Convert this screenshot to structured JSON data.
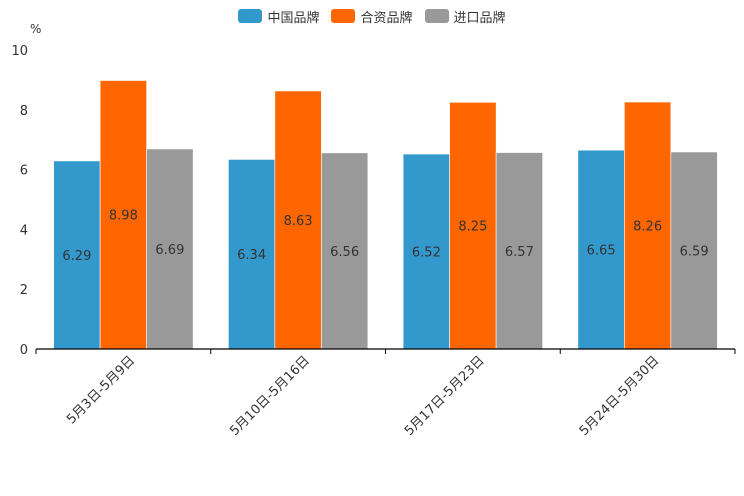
{
  "chart_data": {
    "type": "bar",
    "title": "",
    "ylabel": "%",
    "xlabel": "",
    "ylim": [
      0,
      10
    ],
    "yticks": [
      "0",
      "2",
      "4",
      "6",
      "8",
      "10"
    ],
    "categories": [
      "5月3日-5月9日",
      "5月10日-5月16日",
      "5月17日-5月23日",
      "5月24日-5月30日"
    ],
    "legend_position": "top-center",
    "series": [
      {
        "name": "中国品牌",
        "color": "#3399cc",
        "values": [
          6.29,
          6.34,
          6.52,
          6.65
        ]
      },
      {
        "name": "合资品牌",
        "color": "#ff6600",
        "values": [
          8.98,
          8.63,
          8.25,
          8.26
        ]
      },
      {
        "name": "进口品牌",
        "color": "#999999",
        "values": [
          6.69,
          6.56,
          6.57,
          6.59
        ]
      }
    ]
  }
}
